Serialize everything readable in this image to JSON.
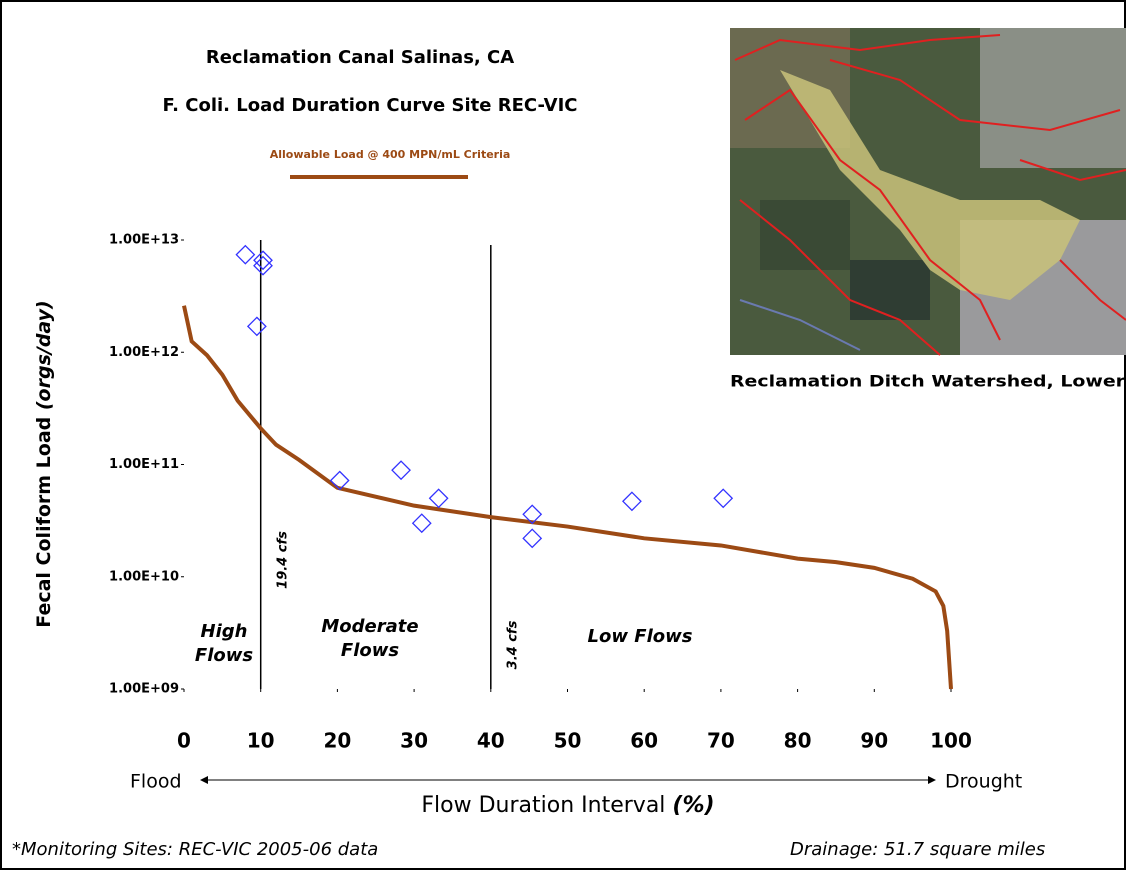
{
  "chart_data": {
    "type": "line",
    "title": [
      "Reclamation Canal Salinas, CA",
      "F. Coli. Load Duration Curve Site REC-VIC"
    ],
    "y_label": [
      "Fecal Coliform Load",
      "(orgs/day)"
    ],
    "x_label": [
      "Flow Duration Interval",
      "(%)"
    ],
    "x_direction": [
      "Flood",
      "Drought"
    ],
    "footnotes": [
      "*Monitoring Sites: REC-VIC 2005-06 data",
      "Drainage: 51.7 square miles"
    ],
    "map_caption": "Reclamation Ditch Watershed, Lower",
    "log_y": true,
    "xlim": [
      0,
      100
    ],
    "xticks": [
      0,
      10,
      20,
      30,
      40,
      50,
      60,
      70,
      80,
      90,
      100
    ],
    "ylim": [
      1000000000,
      10000000000000
    ],
    "yticks": [
      {
        "value": 1000000000,
        "label": "1.00E+09"
      },
      {
        "value": 10000000000,
        "label": "1.00E+10"
      },
      {
        "value": 100000000000,
        "label": "1.00E+11"
      },
      {
        "value": 1000000000000,
        "label": "1.00E+12"
      },
      {
        "value": 10000000000000,
        "label": "1.00E+13"
      }
    ],
    "series": [
      {
        "name": "Allowable Load @ 400 MPN/mL Criteria",
        "type": "line",
        "color": "#9c4a14",
        "x": [
          0,
          1,
          3,
          5,
          7,
          10,
          12,
          15,
          20,
          30,
          40,
          50,
          60,
          70,
          80,
          85,
          90,
          95,
          98,
          99,
          99.5,
          100
        ],
        "values": [
          2600000000000,
          1250000000000,
          940000000000,
          630000000000,
          370000000000,
          210000000000,
          150000000000,
          110000000000,
          62000000000,
          43000000000,
          34000000000,
          28000000000,
          22000000000,
          19000000000,
          14500000000,
          13500000000,
          12000000000,
          9600000000,
          7400000000,
          5500000000,
          3300000000,
          1000000000
        ]
      },
      {
        "type": "scatter",
        "color": "#3333ff",
        "x": [
          8.0,
          10.3,
          10.3,
          9.5,
          20.3,
          28.3,
          33.2,
          31.0,
          45.4,
          45.4,
          58.4,
          70.3
        ],
        "values": [
          7400000000000,
          6600000000000,
          5900000000000,
          1700000000000,
          72000000000,
          89000000000,
          50000000000,
          30000000000,
          36000000000,
          22000000000,
          47000000000,
          50000000000
        ]
      }
    ],
    "reference_lines": [
      {
        "x": 10,
        "label": "19.4 cfs"
      },
      {
        "x": 40,
        "label": "3.4 cfs"
      }
    ],
    "regions": [
      {
        "lines": [
          "High",
          "Flows"
        ]
      },
      {
        "lines": [
          "Moderate",
          "Flows"
        ]
      },
      {
        "lines": [
          "Low Flows"
        ]
      }
    ]
  }
}
